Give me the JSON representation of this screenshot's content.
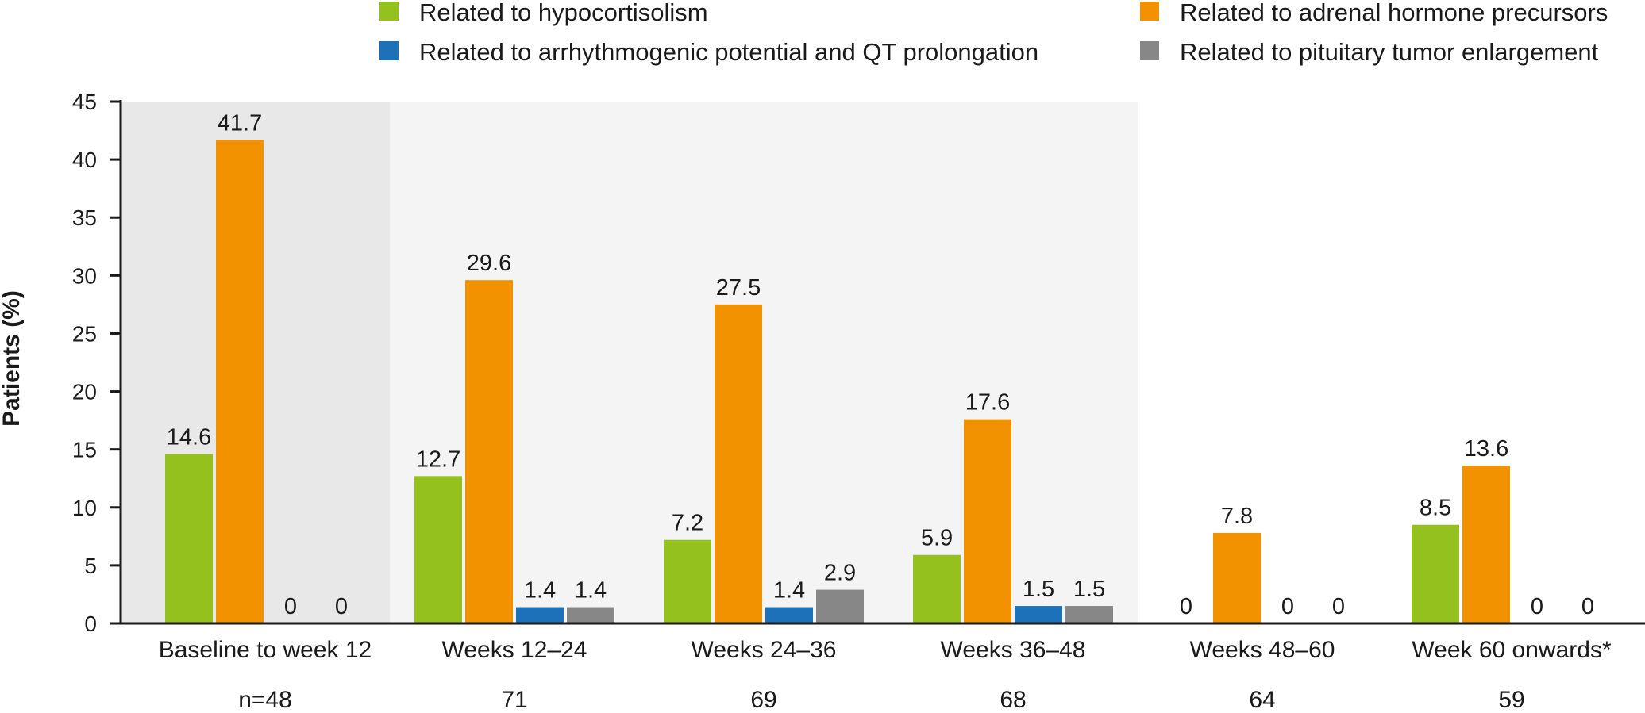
{
  "chart_data": {
    "type": "bar",
    "title": "",
    "xlabel": "",
    "ylabel": "Patients (%)",
    "ylim": [
      0,
      45
    ],
    "yticks": [
      0,
      5,
      10,
      15,
      20,
      25,
      30,
      35,
      40,
      45
    ],
    "categories": [
      "Baseline to week 12",
      "Weeks 12–24",
      "Weeks 24–36",
      "Weeks 36–48",
      "Weeks 48–60",
      "Week 60 onwards*"
    ],
    "n_values": [
      "n=48",
      "71",
      "69",
      "68",
      "64",
      "59"
    ],
    "series": [
      {
        "name": "Related to hypocortisolism",
        "color": "#95c11f",
        "values": [
          14.6,
          12.7,
          7.2,
          5.9,
          0,
          8.5
        ],
        "labels": [
          "14.6",
          "12.7",
          "7.2",
          "5.9",
          "0",
          "8.5"
        ]
      },
      {
        "name": "Related to adrenal hormone precursors",
        "color": "#f39200",
        "values": [
          41.7,
          29.6,
          27.5,
          17.6,
          7.8,
          13.6
        ],
        "labels": [
          "41.7",
          "29.6",
          "27.5",
          "17.6",
          "7.8",
          "13.6"
        ]
      },
      {
        "name": "Related to arrhythmogenic potential and QT prolongation",
        "color": "#1d71b8",
        "values": [
          0,
          1.4,
          1.4,
          1.5,
          0,
          0
        ],
        "labels": [
          "0",
          "1.4",
          "1.4",
          "1.5",
          "0",
          "0"
        ]
      },
      {
        "name": "Related to pituitary tumor enlargement",
        "color": "#878787",
        "values": [
          0,
          1.4,
          2.9,
          1.5,
          0,
          0
        ],
        "labels": [
          "0",
          "1.4",
          "2.9",
          "1.5",
          "0",
          "0"
        ]
      }
    ],
    "shaded_regions": [
      {
        "from_category": 0,
        "to_category": 0,
        "color": "#e8e8e8"
      },
      {
        "from_category": 1,
        "to_category": 3,
        "color": "#f4f4f4"
      }
    ],
    "legend_position": "top"
  }
}
